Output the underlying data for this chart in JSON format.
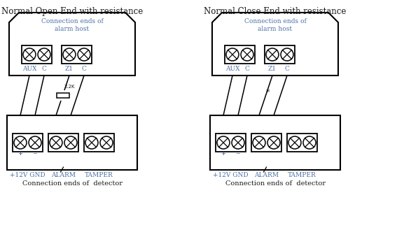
{
  "title_left": "Normal Open End with resistance",
  "title_right": "Normal Close End with resistance",
  "label_host": "Connection ends of\nalarm host",
  "label_detector": "Connection ends of  detector",
  "resistor_label": "2.2K",
  "bg_color": "#ffffff",
  "box_color": "#000000",
  "text_color": "#4a6fa5",
  "title_color": "#1a1a1a",
  "line_color": "#000000",
  "fig_w": 5.87,
  "fig_h": 3.49,
  "dpi": 100
}
